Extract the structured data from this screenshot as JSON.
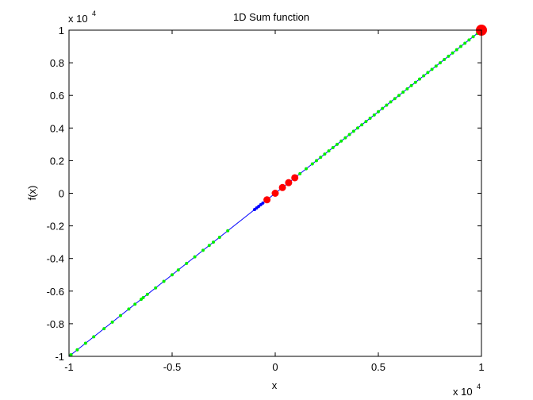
{
  "chart_data": {
    "type": "scatter",
    "title": "1D Sum function",
    "xlabel": "x",
    "ylabel": "f(x)",
    "x_multiplier_text": "x 10",
    "y_multiplier_text": "x 10",
    "multiplier_exponent": "4",
    "xlim": [
      -10000,
      10000
    ],
    "ylim": [
      -10000,
      10000
    ],
    "x_ticks": [
      -10000,
      -5000,
      0,
      5000,
      10000
    ],
    "x_tick_labels": [
      "-1",
      "-0.5",
      "0",
      "0.5",
      "1"
    ],
    "y_ticks": [
      -10000,
      -8000,
      -6000,
      -4000,
      -2000,
      0,
      2000,
      4000,
      6000,
      8000,
      10000
    ],
    "y_tick_labels": [
      "-1",
      "-0.8",
      "-0.6",
      "-0.4",
      "-0.2",
      "0",
      "0.2",
      "0.4",
      "0.6",
      "0.8",
      "1"
    ],
    "grid": false,
    "colors": {
      "line": "#0000ff",
      "green_points": "#00ee00",
      "blue_points": "#0000ff",
      "red_points": "#ff0000"
    },
    "series": [
      {
        "type": "line",
        "x": [
          -10000,
          10000
        ],
        "y": [
          -10000,
          10000
        ]
      },
      {
        "type": "scatter",
        "marker_size": "small",
        "x": [
          -9900,
          -9600,
          -9200,
          -8800,
          -8300,
          -7900,
          -7500,
          -7100,
          -6800,
          -6500,
          -6400,
          -6200,
          -5800,
          -5400,
          -5000,
          -4700,
          -4300,
          -3900,
          -3500,
          -3200,
          -3000,
          -2700,
          -2300,
          1200,
          1500,
          1800,
          2000,
          2200,
          2400,
          2600,
          2800,
          3000,
          3200,
          3400,
          3600,
          3800,
          4000,
          4200,
          4400,
          4600,
          4800,
          5000,
          5200,
          5400,
          5600,
          5800,
          6000,
          6200,
          6400,
          6600,
          6800,
          7000,
          7200,
          7400,
          7600,
          7800,
          8000,
          8200,
          8400,
          8600,
          8800,
          9000,
          9200,
          9400,
          9600,
          9800
        ],
        "y": [
          -9900,
          -9600,
          -9200,
          -8800,
          -8300,
          -7900,
          -7500,
          -7100,
          -6800,
          -6500,
          -6400,
          -6200,
          -5800,
          -5400,
          -5000,
          -4700,
          -4300,
          -3900,
          -3500,
          -3200,
          -3000,
          -2700,
          -2300,
          1200,
          1500,
          1800,
          2000,
          2200,
          2400,
          2600,
          2800,
          3000,
          3200,
          3400,
          3600,
          3800,
          4000,
          4200,
          4400,
          4600,
          4800,
          5000,
          5200,
          5400,
          5600,
          5800,
          6000,
          6200,
          6400,
          6600,
          6800,
          7000,
          7200,
          7400,
          7600,
          7800,
          8000,
          8200,
          8400,
          8600,
          8800,
          9000,
          9200,
          9400,
          9600,
          9800
        ]
      },
      {
        "type": "scatter",
        "marker_size": "small",
        "x": [
          -1000,
          -900,
          -800,
          -700,
          -600
        ],
        "y": [
          -1000,
          -900,
          -800,
          -700,
          -600
        ]
      },
      {
        "type": "scatter",
        "marker_size": "medium",
        "x": [
          -400,
          0,
          350,
          650,
          950
        ],
        "y": [
          -400,
          0,
          350,
          650,
          950
        ]
      },
      {
        "type": "scatter",
        "marker_size": "large",
        "x": [
          10000
        ],
        "y": [
          10000
        ]
      }
    ]
  }
}
